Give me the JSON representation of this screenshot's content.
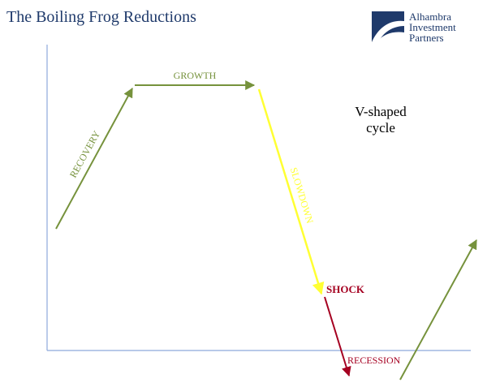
{
  "header": {
    "title": "The Boiling Frog Reductions"
  },
  "logo": {
    "line1": "Alhambra",
    "line2": "Investment",
    "line3": "Partners"
  },
  "diagram": {
    "annotation_line1": "V-shaped",
    "annotation_line2": "cycle",
    "labels": {
      "recovery": "RECOVERY",
      "growth": "GROWTH",
      "slowdown": "SLOWDOWN",
      "shock": "SHOCK",
      "recession": "RECESSION"
    },
    "colors": {
      "green": "#76923c",
      "yellow": "#ffff33",
      "red": "#a50021",
      "axis": "#8ea9db",
      "title": "#1f3a6b"
    }
  }
}
